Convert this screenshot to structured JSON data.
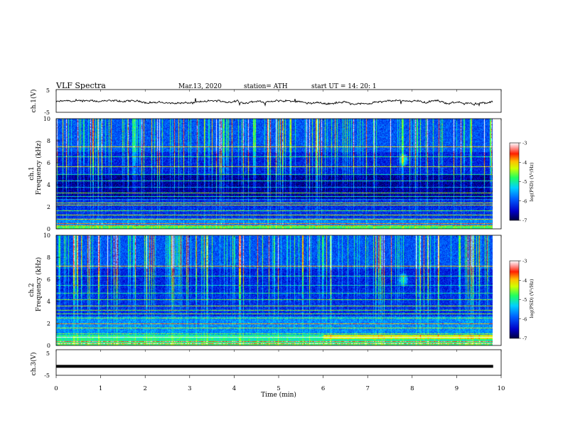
{
  "header": {
    "title": "VLF  Spectra",
    "date": "Mar.13, 2020",
    "station": "station= ATH",
    "start_ut": "start  UT  =    14: 20: 1"
  },
  "chart_data": [
    {
      "type": "line",
      "panel": "ch1-waveform",
      "ylabel": "ch.1(V)",
      "ylim": [
        -5,
        5
      ],
      "yticks": [
        "5",
        "-5"
      ],
      "xlim": [
        0,
        10
      ],
      "note_values": "continuous noisy trace, approximately -1 to 0 V over 0–9.8 min"
    },
    {
      "type": "heatmap",
      "panel": "ch1-spectrogram",
      "ylabel": "ch.1\nFrequency  (kHz)",
      "ylabel_line1": "ch.1",
      "ylabel_line2": "Frequency  (kHz)",
      "ylim": [
        0,
        10
      ],
      "yticks": [
        "0",
        "2",
        "4",
        "6",
        "8",
        "10"
      ],
      "xlim": [
        0,
        10
      ],
      "x_data_end": 9.82,
      "colorbar": {
        "label": "log(PSD) (V²/Hz)",
        "min": -7,
        "max": -3,
        "ticks": [
          "-3",
          "-4",
          "-5",
          "-6",
          "-7"
        ]
      },
      "hotspot": {
        "time_min": 7.8,
        "freq_khz": 6.3
      }
    },
    {
      "type": "heatmap",
      "panel": "ch2-spectrogram",
      "ylabel_line1": "ch.2",
      "ylabel_line2": "Frequency  (kHz)",
      "ylim": [
        0,
        10
      ],
      "yticks": [
        "0",
        "2",
        "4",
        "6",
        "8",
        "10"
      ],
      "xlim": [
        0,
        10
      ],
      "x_data_end": 9.82,
      "colorbar": {
        "label": "log(PSD) (V²/Hz)",
        "min": -7,
        "max": -3,
        "ticks": [
          "-3",
          "-4",
          "-5",
          "-6",
          "-7"
        ]
      },
      "hotspot": {
        "time_min": 7.8,
        "freq_khz": 6.0
      }
    },
    {
      "type": "line",
      "panel": "ch3-waveform",
      "ylabel": "ch.3(V)",
      "ylim": [
        -5,
        5
      ],
      "yticks": [
        "5",
        "-5"
      ],
      "xlim": [
        0,
        10
      ],
      "xlabel": "Time  (min)",
      "xticks": [
        "0",
        "1",
        "2",
        "3",
        "4",
        "5",
        "6",
        "7",
        "8",
        "9",
        "10"
      ],
      "constant_value": -1.5
    }
  ],
  "colors": {
    "deep": "#00006e",
    "blue": "#0030ff",
    "cyan": "#00c8ff",
    "green": "#30ff60",
    "yellow": "#ffff00",
    "red": "#ff0000"
  }
}
